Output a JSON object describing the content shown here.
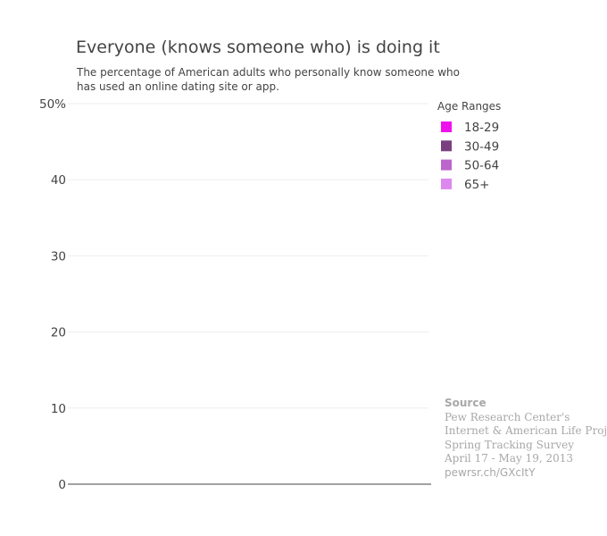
{
  "chart_data": {
    "type": "bar",
    "title": "Everyone (knows someone who) is doing it",
    "subtitle_lines": [
      "The percentage of American adults who personally know someone who",
      "has used an online dating site or app."
    ],
    "ylim": [
      0,
      50
    ],
    "yticks": [
      {
        "value": 0,
        "label": "0"
      },
      {
        "value": 10,
        "label": "10"
      },
      {
        "value": 20,
        "label": "20"
      },
      {
        "value": 30,
        "label": "30"
      },
      {
        "value": 40,
        "label": "40"
      },
      {
        "value": 50,
        "label": "50%"
      }
    ],
    "categories": [],
    "legend": {
      "title": "Age Ranges",
      "placement": "right"
    },
    "series": [
      {
        "name": "18-29",
        "color": "#ee11ee",
        "values": []
      },
      {
        "name": "30-49",
        "color": "#7b3f7f",
        "values": []
      },
      {
        "name": "50-64",
        "color": "#bb66cc",
        "values": []
      },
      {
        "name": "65+",
        "color": "#dd88ee",
        "values": []
      }
    ],
    "grid": true
  },
  "source": {
    "heading": "Source",
    "lines": [
      "Pew Research Center's",
      "Internet & American Life Project",
      "Spring Tracking Survey",
      "April 17 - May 19, 2013",
      "pewrsr.ch/GXcItY"
    ]
  }
}
